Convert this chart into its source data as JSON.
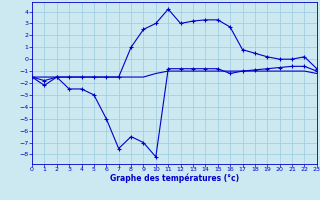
{
  "xlabel": "Graphe des températures (°c)",
  "bg_color": "#cce8f0",
  "grid_color": "#99cce0",
  "line_color": "#0000cc",
  "hours": [
    0,
    1,
    2,
    3,
    4,
    5,
    6,
    7,
    8,
    9,
    10,
    11,
    12,
    13,
    14,
    15,
    16,
    17,
    18,
    19,
    20,
    21,
    22,
    23
  ],
  "line_flat": [
    -1.5,
    -1.5,
    -1.5,
    -1.5,
    -1.5,
    -1.5,
    -1.5,
    -1.5,
    -1.5,
    -1.5,
    -1.2,
    -1.0,
    -1.0,
    -1.0,
    -1.0,
    -1.0,
    -1.0,
    -1.0,
    -1.0,
    -1.0,
    -1.0,
    -1.0,
    -1.0,
    -1.2
  ],
  "line_dip": [
    -1.5,
    -2.2,
    -1.5,
    -2.5,
    -2.5,
    -3.0,
    -5.0,
    -7.5,
    -6.5,
    -7.0,
    -8.2,
    -0.8,
    -0.8,
    -0.8,
    -0.8,
    -0.8,
    -1.2,
    -1.0,
    -0.9,
    -0.8,
    -0.7,
    -0.6,
    -0.6,
    -1.0
  ],
  "line_rise": [
    -1.5,
    -1.8,
    -1.5,
    -1.5,
    -1.5,
    -1.5,
    -1.5,
    -1.5,
    1.0,
    2.5,
    3.0,
    4.2,
    3.0,
    3.2,
    3.3,
    3.3,
    2.7,
    0.8,
    0.5,
    0.2,
    0.0,
    0.0,
    0.2,
    -0.8
  ],
  "ylim": [
    -8.8,
    4.8
  ],
  "yticks": [
    -8,
    -7,
    -6,
    -5,
    -4,
    -3,
    -2,
    -1,
    0,
    1,
    2,
    3,
    4
  ],
  "xlim": [
    0,
    23
  ],
  "xticks": [
    0,
    1,
    2,
    3,
    4,
    5,
    6,
    7,
    8,
    9,
    10,
    11,
    12,
    13,
    14,
    15,
    16,
    17,
    18,
    19,
    20,
    21,
    22,
    23
  ]
}
